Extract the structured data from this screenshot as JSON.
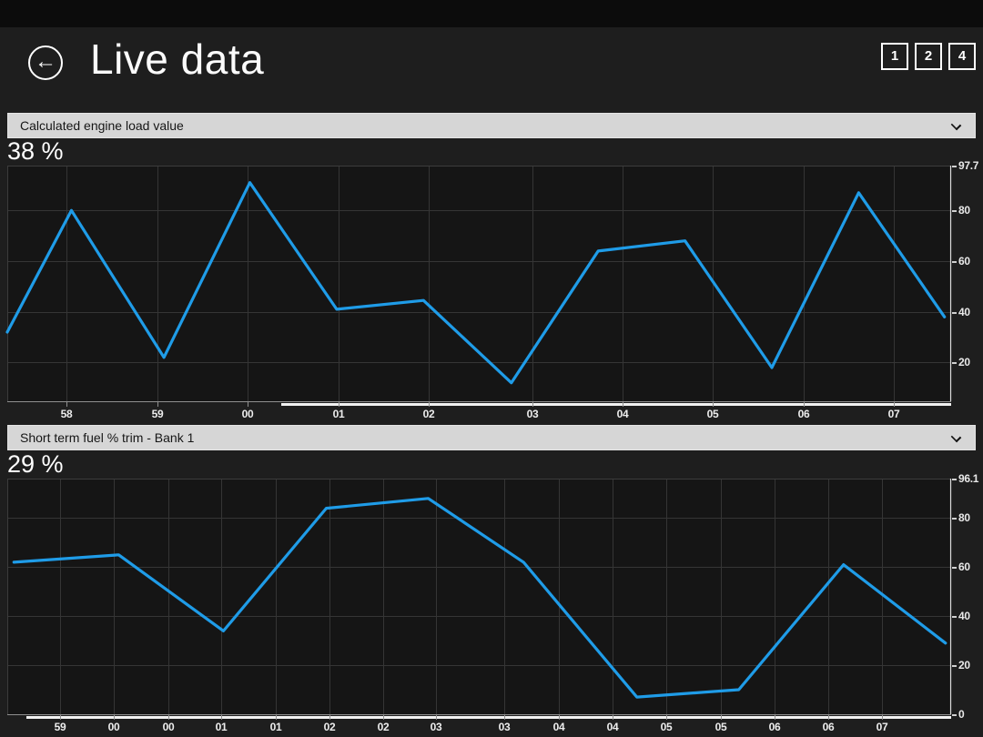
{
  "header": {
    "title": "Live data",
    "back_icon": "←"
  },
  "page_buttons": [
    {
      "label": "1"
    },
    {
      "label": "2"
    },
    {
      "label": "4"
    }
  ],
  "panels": [
    {
      "dropdown_label": "Calculated engine load value",
      "current_value": "38 %"
    },
    {
      "dropdown_label": "Short term fuel % trim - Bank 1",
      "current_value": "29 %"
    }
  ],
  "colors": {
    "accent_line": "#1f9ce8",
    "page_bg": "#1e1e1e",
    "top_strip_bg": "#0c0c0c",
    "plot_bg": "#151515",
    "grid": "#353535",
    "plot_border": "#3c3c3c",
    "right_axis": "#dcdcdc",
    "bottom_axis": "#8f8f8f",
    "scroll_segment": "#f2f2f2",
    "dropdown_bg": "#d6d6d6",
    "dropdown_text": "#161616"
  },
  "chart_data": [
    {
      "type": "line",
      "title": "Calculated engine load value",
      "unit": "%",
      "current_value": 38,
      "ylim": [
        4.7,
        97.7
      ],
      "y_axis_labels": [
        {
          "v": 97.7,
          "t": "97.7"
        },
        {
          "v": 80,
          "t": "80"
        },
        {
          "v": 60,
          "t": "60"
        },
        {
          "v": 40,
          "t": "40"
        },
        {
          "v": 20,
          "t": "20"
        }
      ],
      "grid_y": [
        80,
        60,
        40,
        20
      ],
      "x_ticks": [
        {
          "f": 0.063,
          "t": "58"
        },
        {
          "f": 0.159,
          "t": "59"
        },
        {
          "f": 0.255,
          "t": "00"
        },
        {
          "f": 0.351,
          "t": "01"
        },
        {
          "f": 0.446,
          "t": "02"
        },
        {
          "f": 0.556,
          "t": "03"
        },
        {
          "f": 0.652,
          "t": "04"
        },
        {
          "f": 0.747,
          "t": "05"
        },
        {
          "f": 0.844,
          "t": "06"
        },
        {
          "f": 0.939,
          "t": "07"
        }
      ],
      "points": [
        {
          "f": 0.0,
          "v": 32
        },
        {
          "f": 0.068,
          "v": 80
        },
        {
          "f": 0.166,
          "v": 22
        },
        {
          "f": 0.257,
          "v": 91
        },
        {
          "f": 0.349,
          "v": 41
        },
        {
          "f": 0.441,
          "v": 44.5
        },
        {
          "f": 0.534,
          "v": 12
        },
        {
          "f": 0.626,
          "v": 64
        },
        {
          "f": 0.718,
          "v": 68
        },
        {
          "f": 0.81,
          "v": 18
        },
        {
          "f": 0.902,
          "v": 87
        },
        {
          "f": 0.993,
          "v": 38
        }
      ],
      "scroll_start_f": 0.29
    },
    {
      "type": "line",
      "title": "Short term fuel % trim - Bank 1",
      "unit": "%",
      "current_value": 29,
      "ylim": [
        0,
        96.1
      ],
      "y_axis_labels": [
        {
          "v": 96.1,
          "t": "96.1"
        },
        {
          "v": 80,
          "t": "80"
        },
        {
          "v": 60,
          "t": "60"
        },
        {
          "v": 40,
          "t": "40"
        },
        {
          "v": 20,
          "t": "20"
        },
        {
          "v": 0,
          "t": "0"
        }
      ],
      "grid_y": [
        80,
        60,
        40,
        20
      ],
      "x_ticks": [
        {
          "f": 0.056,
          "t": "59"
        },
        {
          "f": 0.113,
          "t": "00"
        },
        {
          "f": 0.171,
          "t": "00"
        },
        {
          "f": 0.227,
          "t": "01"
        },
        {
          "f": 0.284,
          "t": "01"
        },
        {
          "f": 0.341,
          "t": "02"
        },
        {
          "f": 0.398,
          "t": "02"
        },
        {
          "f": 0.454,
          "t": "03"
        },
        {
          "f": 0.527,
          "t": "03"
        },
        {
          "f": 0.584,
          "t": "04"
        },
        {
          "f": 0.641,
          "t": "04"
        },
        {
          "f": 0.698,
          "t": "05"
        },
        {
          "f": 0.756,
          "t": "05"
        },
        {
          "f": 0.813,
          "t": "06"
        },
        {
          "f": 0.87,
          "t": "06"
        },
        {
          "f": 0.927,
          "t": "07"
        }
      ],
      "points": [
        {
          "f": 0.007,
          "v": 62
        },
        {
          "f": 0.118,
          "v": 65
        },
        {
          "f": 0.229,
          "v": 34
        },
        {
          "f": 0.338,
          "v": 84
        },
        {
          "f": 0.446,
          "v": 88
        },
        {
          "f": 0.547,
          "v": 62
        },
        {
          "f": 0.667,
          "v": 7
        },
        {
          "f": 0.775,
          "v": 10
        },
        {
          "f": 0.886,
          "v": 61
        },
        {
          "f": 0.994,
          "v": 29
        }
      ],
      "scroll_start_f": 0.02
    }
  ]
}
